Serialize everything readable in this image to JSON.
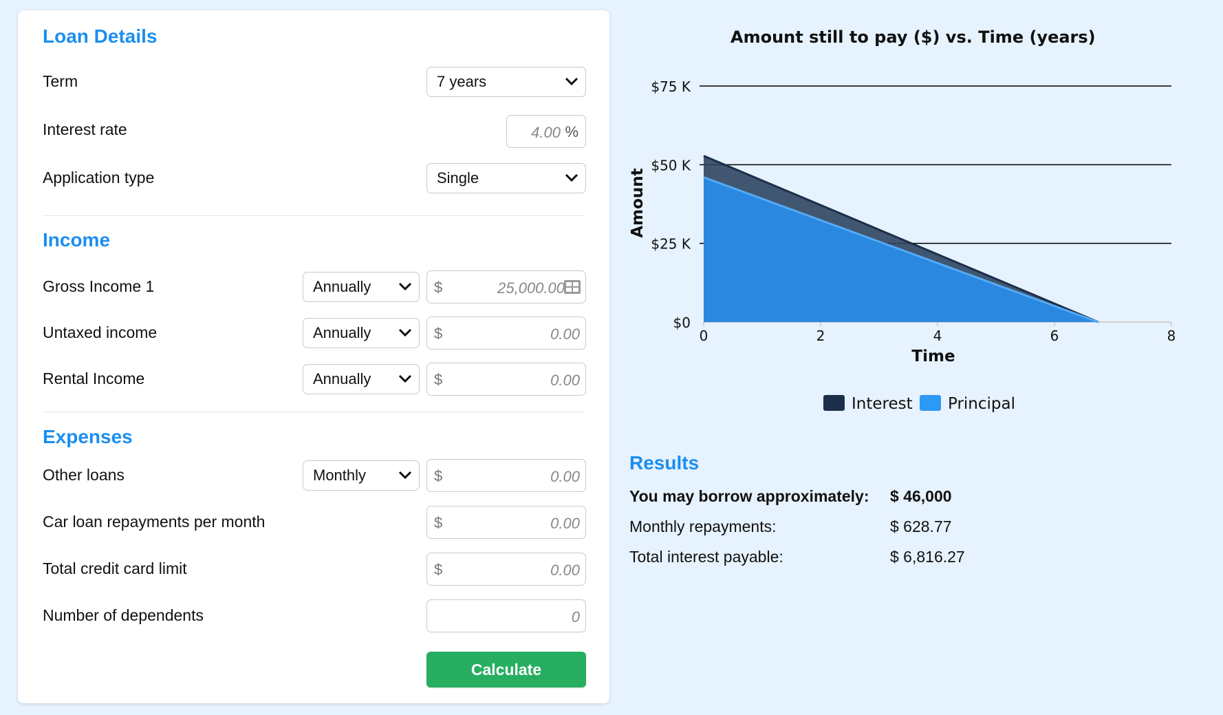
{
  "loan": {
    "title": "Loan Details",
    "term_label": "Term",
    "term_value": "7 years",
    "rate_label": "Interest rate",
    "rate_value": "4.00",
    "rate_unit": "%",
    "app_label": "Application type",
    "app_value": "Single"
  },
  "income": {
    "title": "Income",
    "rows": [
      {
        "label": "Gross Income 1",
        "freq": "Annually",
        "currency": "$",
        "value": "25,000.00"
      },
      {
        "label": "Untaxed income",
        "freq": "Annually",
        "currency": "$",
        "value": "0.00"
      },
      {
        "label": "Rental Income",
        "freq": "Annually",
        "currency": "$",
        "value": "0.00"
      }
    ]
  },
  "expenses": {
    "title": "Expenses",
    "other_loans": {
      "label": "Other loans",
      "freq": "Monthly",
      "currency": "$",
      "value": "0.00"
    },
    "car_loan": {
      "label": "Car loan repayments per month",
      "currency": "$",
      "value": "0.00"
    },
    "credit_limit": {
      "label": "Total credit card limit",
      "currency": "$",
      "value": "0.00"
    },
    "dependents": {
      "label": "Number of dependents",
      "value": "0"
    }
  },
  "calculate_label": "Calculate",
  "chart_data": {
    "type": "area",
    "title": "Amount still to pay ($) vs. Time (years)",
    "xlabel": "Time",
    "ylabel": "Amount",
    "xlim": [
      0,
      8
    ],
    "ylim": [
      0,
      75000
    ],
    "x_ticks": [
      "0",
      "2",
      "4",
      "6",
      "8"
    ],
    "y_ticks": [
      "$0",
      "$25 K",
      "$50 K",
      "$75 K"
    ],
    "grid": true,
    "legend_position": "bottom",
    "series": [
      {
        "name": "Interest",
        "color": "#1c2e4a",
        "x": [
          0,
          6.75
        ],
        "y": [
          52800,
          0
        ]
      },
      {
        "name": "Principal",
        "color": "#2a88e0",
        "x": [
          0,
          6.75
        ],
        "y": [
          46000,
          0
        ]
      }
    ]
  },
  "results": {
    "title": "Results",
    "borrow_label": "You may borrow approximately:",
    "borrow_value": "$ 46,000",
    "monthly_label": "Monthly repayments:",
    "monthly_value": "$ 628.77",
    "interest_label": "Total interest payable:",
    "interest_value": "$ 6,816.27"
  }
}
